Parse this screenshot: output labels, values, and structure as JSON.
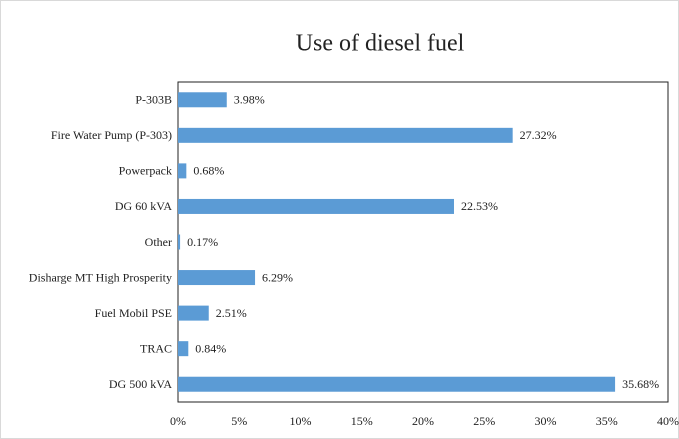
{
  "chart_data": {
    "type": "bar",
    "orientation": "horizontal",
    "title": "Use of diesel fuel",
    "categories": [
      "P-303B",
      "Fire Water Pump (P-303)",
      "Powerpack",
      "DG 60 kVA",
      "Other",
      "Disharge MT High Prosperity",
      "Fuel Mobil PSE",
      "TRAC",
      "DG 500 kVA"
    ],
    "values": [
      3.98,
      27.32,
      0.68,
      22.53,
      0.17,
      6.29,
      2.51,
      0.84,
      35.68
    ],
    "value_labels": [
      "3.98%",
      "27.32%",
      "0.68%",
      "22.53%",
      "0.17%",
      "6.29%",
      "2.51%",
      "0.84%",
      "35.68%"
    ],
    "color": "#5b9bd5",
    "xlim": [
      0,
      40
    ],
    "xticks": [
      {
        "value": 0,
        "label": "0%"
      },
      {
        "value": 5,
        "label": "5%"
      },
      {
        "value": 10,
        "label": "10%"
      },
      {
        "value": 15,
        "label": "15%"
      },
      {
        "value": 20,
        "label": "20%"
      },
      {
        "value": 25,
        "label": "25%"
      },
      {
        "value": 30,
        "label": "30%"
      },
      {
        "value": 35,
        "label": "35%"
      },
      {
        "value": 40,
        "label": "40%"
      }
    ],
    "grid": false
  }
}
